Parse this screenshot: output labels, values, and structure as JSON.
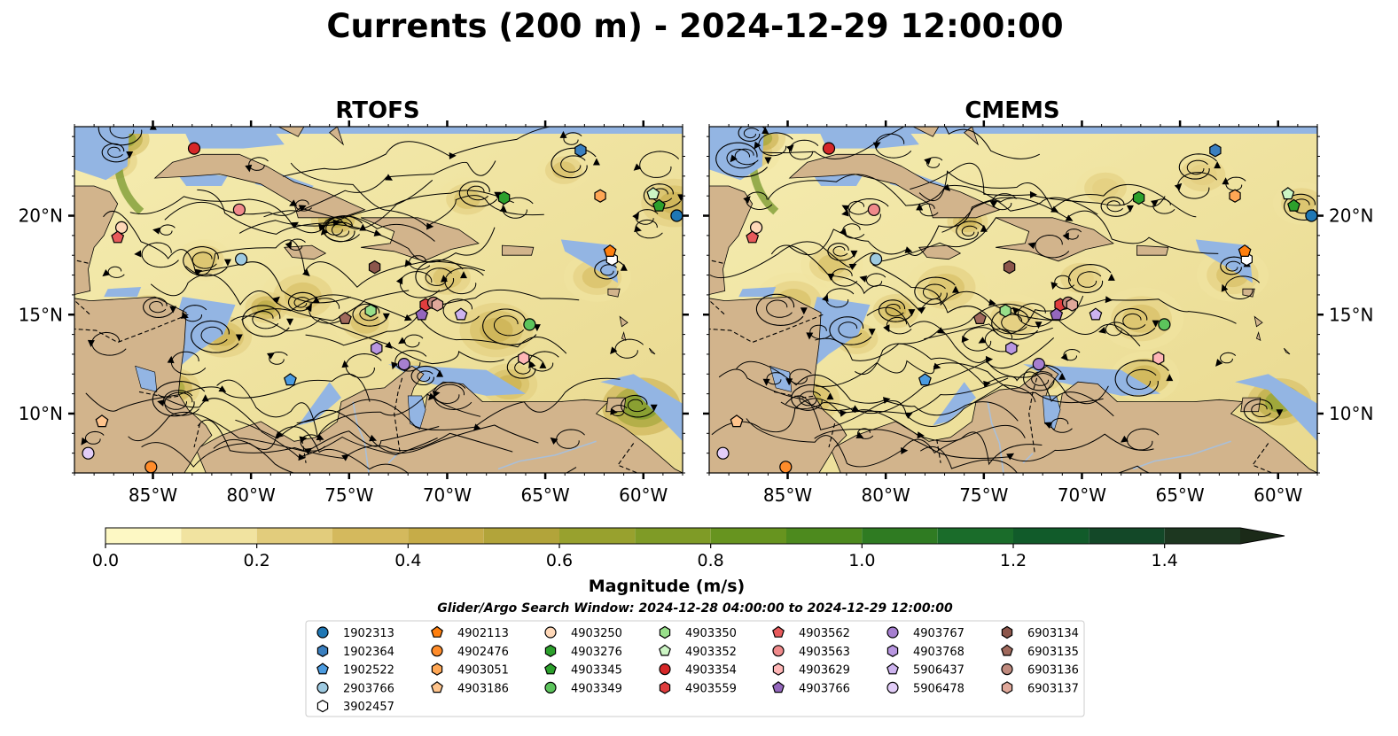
{
  "title": "Currents (200 m) - 2024-12-29 12:00:00",
  "panels": [
    {
      "id": "rtofs",
      "title": "RTOFS"
    },
    {
      "id": "cmems",
      "title": "CMEMS"
    }
  ],
  "map": {
    "lon_range": [
      -89.0,
      -58.0
    ],
    "lat_range": [
      7.0,
      24.5
    ],
    "lon_ticks": [
      "85°W",
      "80°W",
      "75°W",
      "70°W",
      "65°W",
      "60°W"
    ],
    "lon_tick_values": [
      -85,
      -80,
      -75,
      -70,
      -65,
      -60
    ],
    "lat_ticks": [
      "20°N",
      "15°N",
      "10°N"
    ],
    "lat_tick_values": [
      20,
      15,
      10
    ],
    "colors": {
      "ocean": "#f6efb8",
      "land": "#d2b48c",
      "shelf": "#93b5e3",
      "streamline": "#000000",
      "river": "#a9bfd9"
    }
  },
  "colorbar": {
    "label": "Magnitude (m/s)",
    "min": 0.0,
    "max": 1.5,
    "extend": "max",
    "ticks": [
      "0.0",
      "0.2",
      "0.4",
      "0.6",
      "0.8",
      "1.0",
      "1.2",
      "1.4"
    ],
    "tick_values": [
      0.0,
      0.2,
      0.4,
      0.6,
      0.8,
      1.0,
      1.2,
      1.4
    ],
    "colors": [
      "#fdf8c4",
      "#f1e3a0",
      "#e2cc7c",
      "#d4b95d",
      "#c6ac48",
      "#b2a43a",
      "#98a12e",
      "#7f9b26",
      "#67941f",
      "#4d8a1e",
      "#2f7b22",
      "#1a6c2a",
      "#115b2a",
      "#134828",
      "#1d3720",
      "#1b2a18"
    ]
  },
  "search_window": "Glider/Argo Search Window: 2024-12-28 04:00:00 to 2024-12-29 12:00:00",
  "legend": {
    "columns": [
      [
        {
          "id": "1902313",
          "marker": "circle",
          "color": "#1f77b4"
        },
        {
          "id": "1902364",
          "marker": "hexagon",
          "color": "#3a7fbf"
        },
        {
          "id": "1902522",
          "marker": "pentagon",
          "color": "#4b9be0"
        },
        {
          "id": "2903766",
          "marker": "circle",
          "color": "#9ecae1"
        },
        {
          "id": "3902457",
          "marker": "hexagon",
          "color": "#ffffff"
        }
      ],
      [
        {
          "id": "4902113",
          "marker": "pentagon",
          "color": "#ff7f0e"
        },
        {
          "id": "4902476",
          "marker": "circle",
          "color": "#ff8c2a"
        },
        {
          "id": "4903051",
          "marker": "hexagon",
          "color": "#ffa755"
        },
        {
          "id": "4903186",
          "marker": "pentagon",
          "color": "#ffc48c"
        }
      ],
      [
        {
          "id": "4903250",
          "marker": "circle",
          "color": "#ffd8b8"
        },
        {
          "id": "4903276",
          "marker": "hexagon",
          "color": "#2ca02c"
        },
        {
          "id": "4903345",
          "marker": "pentagon",
          "color": "#2ca02c"
        },
        {
          "id": "4903349",
          "marker": "circle",
          "color": "#5cc45c"
        }
      ],
      [
        {
          "id": "4903350",
          "marker": "hexagon",
          "color": "#98df8a"
        },
        {
          "id": "4903352",
          "marker": "pentagon",
          "color": "#ccf5c4"
        },
        {
          "id": "4903354",
          "marker": "circle",
          "color": "#d62728"
        },
        {
          "id": "4903559",
          "marker": "hexagon",
          "color": "#e03d3e"
        }
      ],
      [
        {
          "id": "4903562",
          "marker": "pentagon",
          "color": "#e85a5b"
        },
        {
          "id": "4903563",
          "marker": "circle",
          "color": "#f08a8b"
        },
        {
          "id": "4903629",
          "marker": "hexagon",
          "color": "#ffb6b6"
        },
        {
          "id": "4903766",
          "marker": "pentagon",
          "color": "#9467bd"
        }
      ],
      [
        {
          "id": "4903767",
          "marker": "circle",
          "color": "#a67fd0"
        },
        {
          "id": "4903768",
          "marker": "hexagon",
          "color": "#b896e0"
        },
        {
          "id": "5906437",
          "marker": "pentagon",
          "color": "#cdb3ef"
        },
        {
          "id": "5906478",
          "marker": "circle",
          "color": "#e2cdf8"
        }
      ],
      [
        {
          "id": "6903134",
          "marker": "hexagon",
          "color": "#8c564b"
        },
        {
          "id": "6903135",
          "marker": "pentagon",
          "color": "#a0695c"
        },
        {
          "id": "6903136",
          "marker": "circle",
          "color": "#c08a7e"
        },
        {
          "id": "6903137",
          "marker": "hexagon",
          "color": "#e0a89a"
        }
      ]
    ]
  },
  "floats": [
    {
      "id": "1902313",
      "lon": -58.3,
      "lat": 20.0
    },
    {
      "id": "1902364",
      "lon": -63.2,
      "lat": 23.3
    },
    {
      "id": "1902522",
      "lon": -78.0,
      "lat": 11.7
    },
    {
      "id": "2903766",
      "lon": -80.5,
      "lat": 17.8
    },
    {
      "id": "3902457",
      "lon": -61.6,
      "lat": 17.8
    },
    {
      "id": "4902113",
      "lon": -61.7,
      "lat": 18.2
    },
    {
      "id": "4902476",
      "lon": -85.1,
      "lat": 7.3
    },
    {
      "id": "4903051",
      "lon": -62.2,
      "lat": 21.0
    },
    {
      "id": "4903186",
      "lon": -87.6,
      "lat": 9.6
    },
    {
      "id": "4903250",
      "lon": -86.6,
      "lat": 19.4
    },
    {
      "id": "4903276",
      "lon": -67.1,
      "lat": 20.9
    },
    {
      "id": "4903345",
      "lon": -59.2,
      "lat": 20.5
    },
    {
      "id": "4903349",
      "lon": -65.8,
      "lat": 14.5
    },
    {
      "id": "4903350",
      "lon": -73.9,
      "lat": 15.2
    },
    {
      "id": "4903352",
      "lon": -59.5,
      "lat": 21.1
    },
    {
      "id": "4903354",
      "lon": -82.9,
      "lat": 23.4
    },
    {
      "id": "4903559",
      "lon": -71.1,
      "lat": 15.5
    },
    {
      "id": "4903562",
      "lon": -86.8,
      "lat": 18.9
    },
    {
      "id": "4903563",
      "lon": -80.6,
      "lat": 20.3
    },
    {
      "id": "4903629",
      "lon": -66.1,
      "lat": 12.8
    },
    {
      "id": "4903766",
      "lon": -71.3,
      "lat": 15.0
    },
    {
      "id": "4903767",
      "lon": -72.2,
      "lat": 12.5
    },
    {
      "id": "4903768",
      "lon": -73.6,
      "lat": 13.3
    },
    {
      "id": "5906437",
      "lon": -69.3,
      "lat": 15.0
    },
    {
      "id": "5906478",
      "lon": -88.3,
      "lat": 8.0
    },
    {
      "id": "6903134",
      "lon": -73.7,
      "lat": 17.4
    },
    {
      "id": "6903135",
      "lon": -75.2,
      "lat": 14.8
    },
    {
      "id": "6903136",
      "lon": -70.7,
      "lat": 15.6
    },
    {
      "id": "6903137",
      "lon": -70.5,
      "lat": 15.5
    }
  ]
}
